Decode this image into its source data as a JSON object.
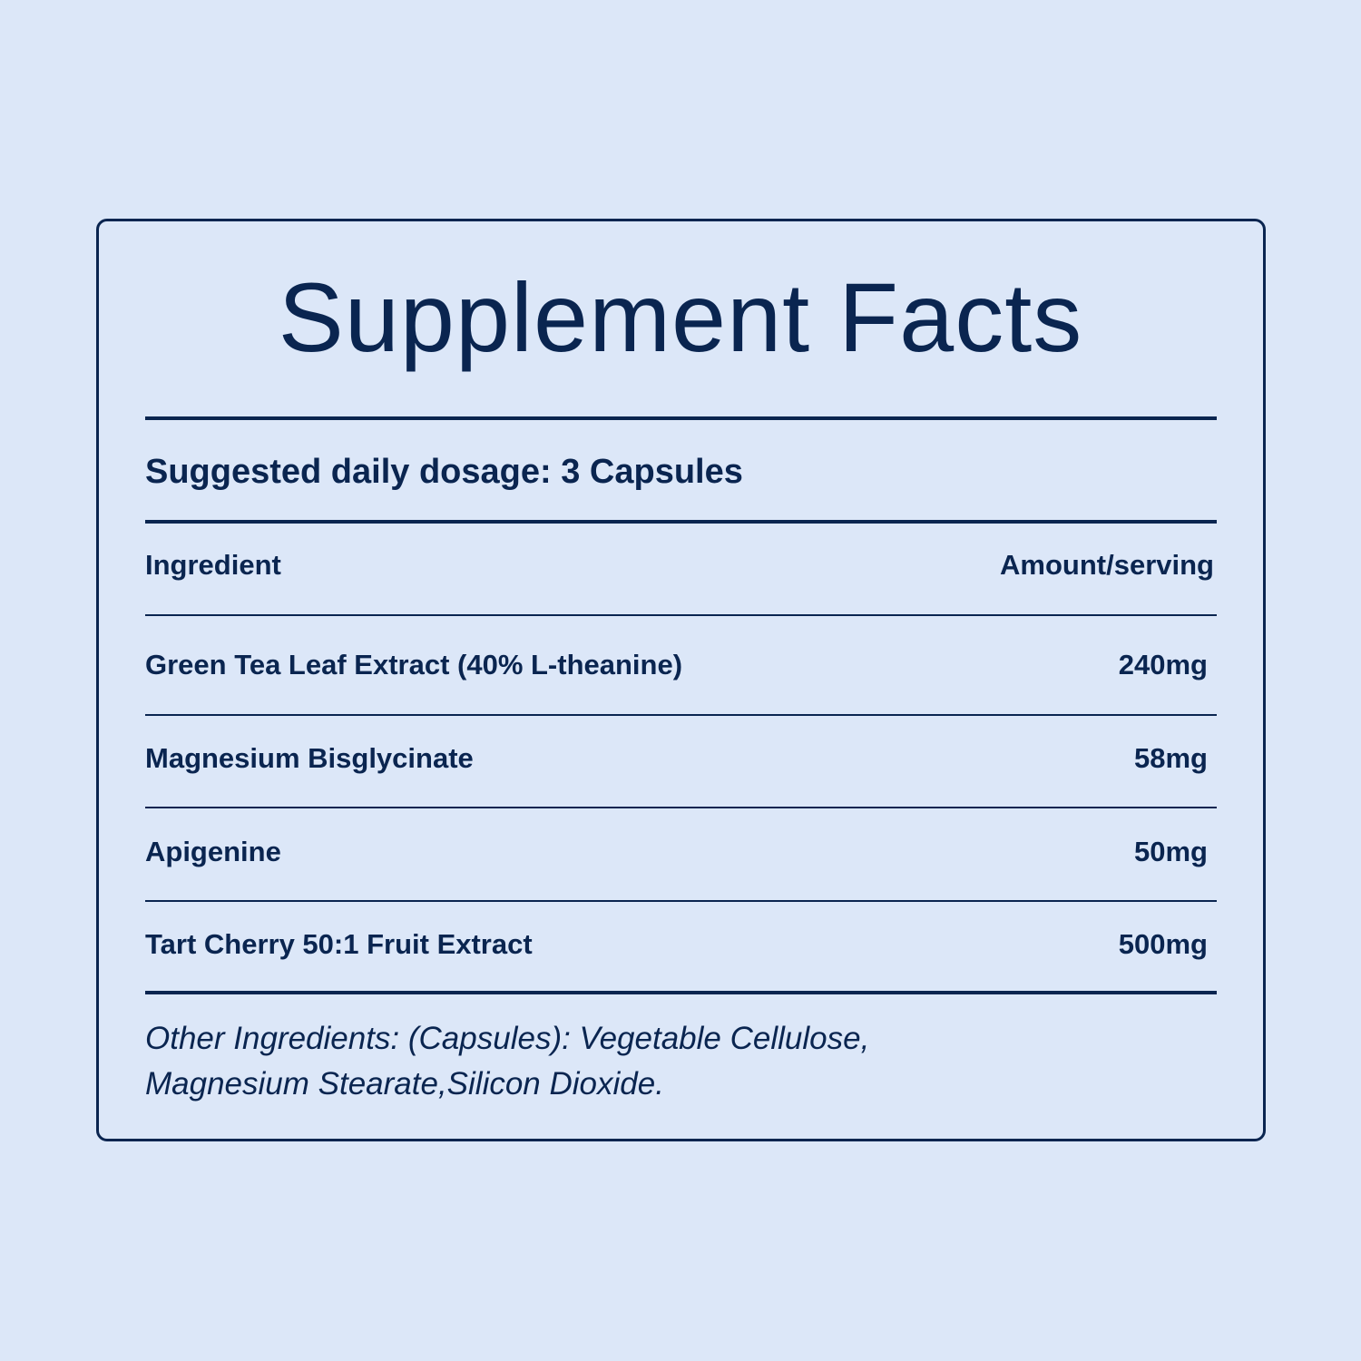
{
  "title": "Supplement Facts",
  "dosage": "Suggested daily dosage: 3 Capsules",
  "table": {
    "headers": {
      "ingredient": "Ingredient",
      "amount": "Amount/serving"
    },
    "rows": [
      {
        "ingredient": "Green Tea Leaf Extract (40% L-theanine)",
        "amount": "240mg"
      },
      {
        "ingredient": "Magnesium Bisglycinate",
        "amount": "58mg"
      },
      {
        "ingredient": "Apigenine",
        "amount": "50mg"
      },
      {
        "ingredient": "Tart Cherry 50:1 Fruit Extract",
        "amount": "500mg"
      }
    ]
  },
  "other_ingredients": "Other Ingredients: (Capsules): Vegetable Cellulose, Magnesium Stearate,Silicon Dioxide.",
  "colors": {
    "background": "#dce7f8",
    "ink": "#0a2550"
  }
}
